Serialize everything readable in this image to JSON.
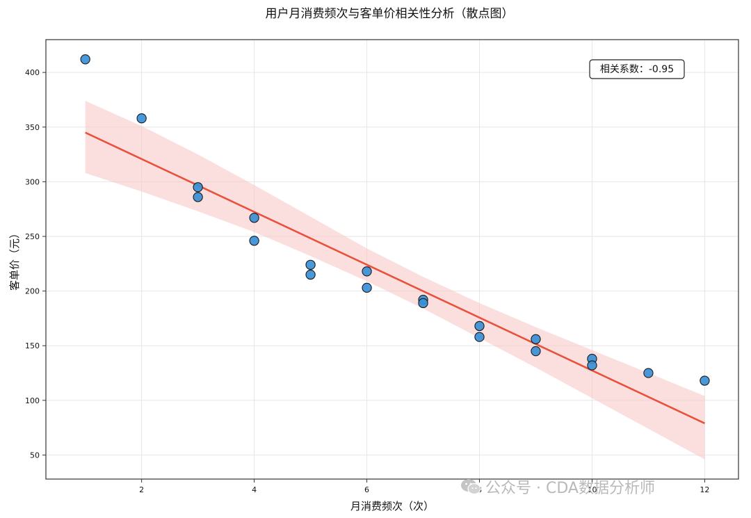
{
  "chart_data": {
    "type": "scatter",
    "title": "用户月消费频次与客单价相关性分析（散点图）",
    "xlabel": "月消费频次（次）",
    "ylabel": "客单价（元）",
    "xlim": [
      0.3,
      12.6
    ],
    "ylim": [
      28,
      430
    ],
    "xticks": [
      2,
      4,
      6,
      8,
      10,
      12
    ],
    "yticks": [
      50,
      100,
      150,
      200,
      250,
      300,
      350,
      400
    ],
    "grid": true,
    "points": [
      {
        "x": 1,
        "y": 412
      },
      {
        "x": 2,
        "y": 358
      },
      {
        "x": 3,
        "y": 295
      },
      {
        "x": 3,
        "y": 286
      },
      {
        "x": 4,
        "y": 267
      },
      {
        "x": 4,
        "y": 246
      },
      {
        "x": 5,
        "y": 224
      },
      {
        "x": 5,
        "y": 215
      },
      {
        "x": 6,
        "y": 218
      },
      {
        "x": 6,
        "y": 203
      },
      {
        "x": 7,
        "y": 192
      },
      {
        "x": 7,
        "y": 189
      },
      {
        "x": 8,
        "y": 168
      },
      {
        "x": 8,
        "y": 158
      },
      {
        "x": 9,
        "y": 156
      },
      {
        "x": 9,
        "y": 145
      },
      {
        "x": 10,
        "y": 138
      },
      {
        "x": 10,
        "y": 132
      },
      {
        "x": 11,
        "y": 125
      },
      {
        "x": 12,
        "y": 118
      }
    ],
    "regression": {
      "x_start": 1,
      "y_start": 345,
      "x_end": 12,
      "y_end": 79
    },
    "confidence_band": [
      {
        "x": 1,
        "lower": 308,
        "upper": 374
      },
      {
        "x": 2,
        "lower": 291,
        "upper": 351
      },
      {
        "x": 3,
        "lower": 273,
        "upper": 325
      },
      {
        "x": 4,
        "lower": 254,
        "upper": 297
      },
      {
        "x": 5,
        "lower": 232,
        "upper": 268
      },
      {
        "x": 6,
        "lower": 209,
        "upper": 239
      },
      {
        "x": 7,
        "lower": 184,
        "upper": 213
      },
      {
        "x": 8,
        "lower": 157,
        "upper": 189
      },
      {
        "x": 9,
        "lower": 130,
        "upper": 167
      },
      {
        "x": 10,
        "lower": 102,
        "upper": 146
      },
      {
        "x": 11,
        "lower": 74,
        "upper": 125
      },
      {
        "x": 12,
        "lower": 46,
        "upper": 104
      }
    ],
    "annotation": "相关系数：-0.95",
    "colors": {
      "points": "#3a8fd6",
      "point_edge": "#1a1a1a",
      "regression": "#e8523d",
      "band": "#f9c9c9",
      "grid": "#e6e6e6"
    }
  },
  "watermark": {
    "icon": "wechat-icon",
    "text": "公众号 · CDA数据分析师"
  }
}
